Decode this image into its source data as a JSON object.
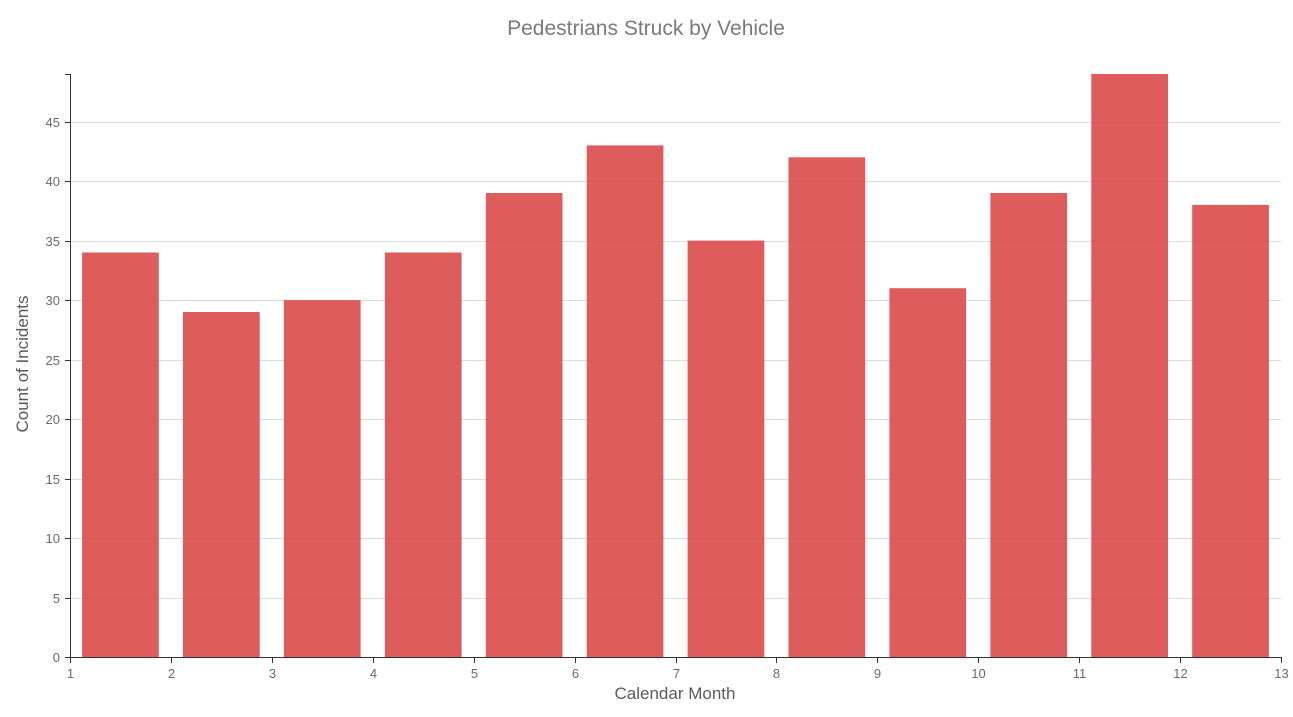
{
  "chart_data": {
    "type": "bar",
    "title": "Pedestrians Struck by Vehicle",
    "xlabel": "Calendar Month",
    "ylabel": "Count of Incidents",
    "x": [
      1,
      2,
      3,
      4,
      5,
      6,
      7,
      8,
      9,
      10,
      11,
      12
    ],
    "values": [
      34,
      29,
      30,
      34,
      39,
      43,
      35,
      42,
      31,
      39,
      49,
      38
    ],
    "xlim": [
      1,
      13
    ],
    "ylim": [
      0,
      49
    ],
    "x_ticks": [
      1,
      2,
      3,
      4,
      5,
      6,
      7,
      8,
      9,
      10,
      11,
      12,
      13
    ],
    "y_ticks": [
      0,
      5,
      10,
      15,
      20,
      25,
      30,
      35,
      40,
      45
    ],
    "grid": "horizontal",
    "bar_color": "#dc4a4b"
  }
}
